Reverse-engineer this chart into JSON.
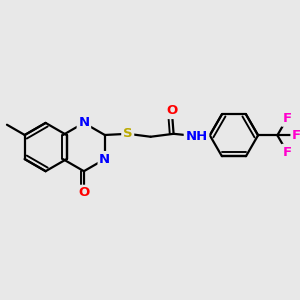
{
  "bg": "#e8e8e8",
  "figsize": [
    3.0,
    3.0
  ],
  "dpi": 100,
  "colors": {
    "N": "#0000ff",
    "O": "#ff0000",
    "S": "#bbaa00",
    "F": "#ff00cc",
    "NH": "#0000ff",
    "C": "#000000",
    "bond": "#000000"
  },
  "lw": 1.6,
  "fs": 9.5,
  "R": 0.082
}
